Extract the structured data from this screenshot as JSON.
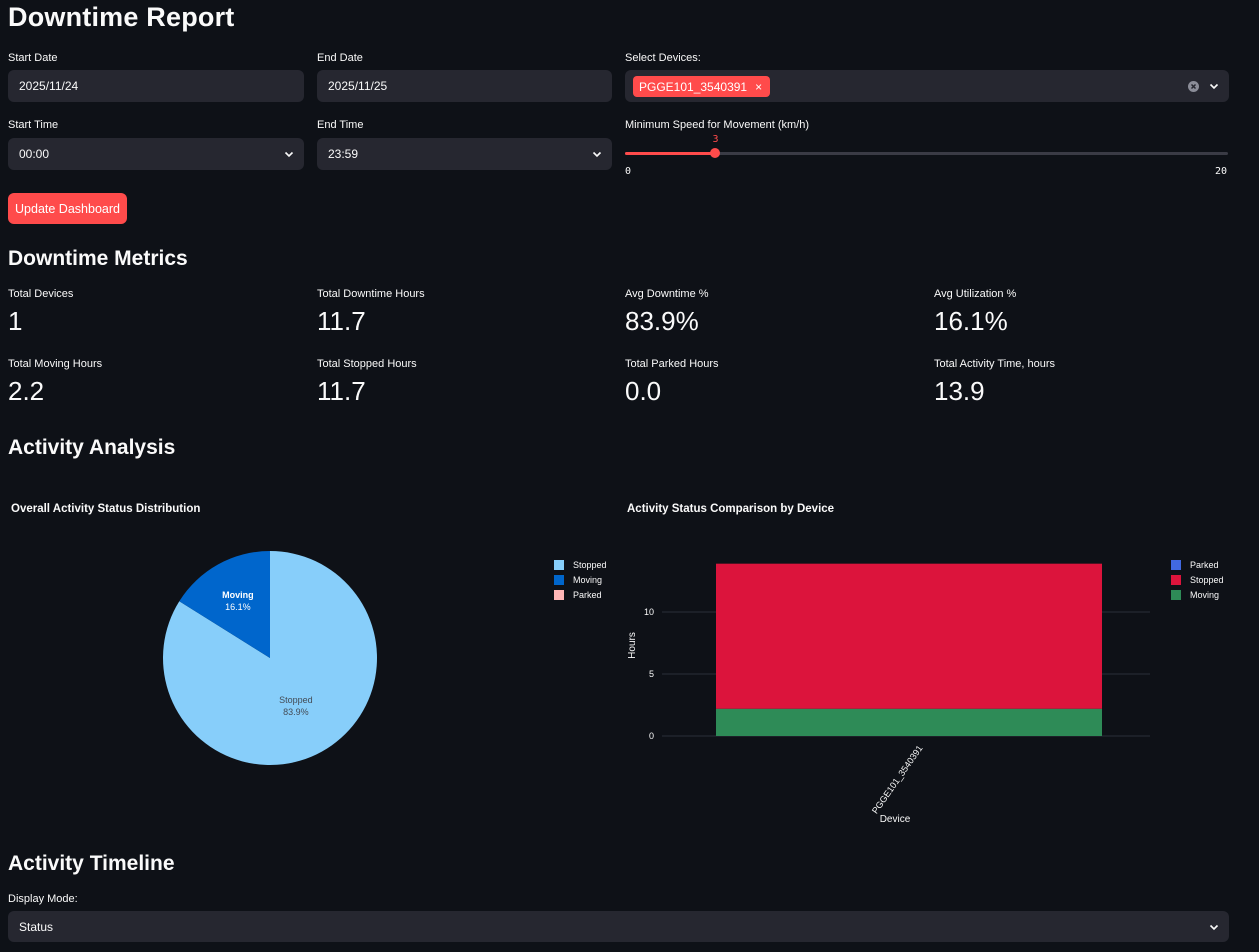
{
  "title": "Downtime Report",
  "filters": {
    "start_date": {
      "label": "Start Date",
      "value": "2025/11/24"
    },
    "end_date": {
      "label": "End Date",
      "value": "2025/11/25"
    },
    "devices": {
      "label": "Select Devices:",
      "selected": "PGGE101_3540391"
    },
    "start_time": {
      "label": "Start Time",
      "value": "00:00"
    },
    "end_time": {
      "label": "End Time",
      "value": "23:59"
    },
    "min_speed": {
      "label": "Minimum Speed for Movement (km/h)",
      "value": 3,
      "min": 0,
      "max": 20,
      "value_label": "3",
      "min_label": "0",
      "max_label": "20"
    },
    "update_button": "Update Dashboard"
  },
  "metrics_heading": "Downtime Metrics",
  "metrics": [
    {
      "label": "Total Devices",
      "value": "1"
    },
    {
      "label": "Total Downtime Hours",
      "value": "11.7"
    },
    {
      "label": "Avg Downtime %",
      "value": "83.9%"
    },
    {
      "label": "Avg Utilization %",
      "value": "16.1%"
    },
    {
      "label": "Total Moving Hours",
      "value": "2.2"
    },
    {
      "label": "Total Stopped Hours",
      "value": "11.7"
    },
    {
      "label": "Total Parked Hours",
      "value": "0.0"
    },
    {
      "label": "Total Activity Time, hours",
      "value": "13.9"
    }
  ],
  "analysis_heading": "Activity Analysis",
  "timeline_heading": "Activity Timeline",
  "display_mode": {
    "label": "Display Mode:",
    "value": "Status"
  },
  "colors": {
    "accent": "#ff4b4b",
    "stopped_pie": "#87cefa",
    "moving_pie": "#0066cc",
    "parked_pie": "#ffb6b6",
    "parked_bar": "#4169e1",
    "stopped_bar": "#dc143c",
    "moving_bar": "#2e8b57"
  },
  "chart_data": [
    {
      "type": "pie",
      "title": "Overall Activity Status Distribution",
      "labels": [
        "Stopped",
        "Moving"
      ],
      "values": [
        83.9,
        16.1
      ],
      "slice_labels": [
        {
          "name": "Stopped",
          "pct": "83.9%"
        },
        {
          "name": "Moving",
          "pct": "16.1%"
        }
      ],
      "legend": [
        "Stopped",
        "Moving",
        "Parked"
      ],
      "legend_position": "right"
    },
    {
      "type": "bar",
      "stacked": true,
      "title": "Activity Status Comparison by Device",
      "categories": [
        "PGGE101_3540391"
      ],
      "series": [
        {
          "name": "Moving",
          "values": [
            2.2
          ]
        },
        {
          "name": "Stopped",
          "values": [
            11.7
          ]
        },
        {
          "name": "Parked",
          "values": [
            0.0
          ]
        }
      ],
      "legend": [
        "Parked",
        "Stopped",
        "Moving"
      ],
      "legend_position": "right",
      "xlabel": "Device",
      "ylabel": "Hours",
      "ylim": [
        0,
        14.6
      ],
      "yticks": [
        0,
        5,
        10
      ],
      "ytick_labels": [
        "0",
        "5",
        "10"
      ],
      "grid": true
    }
  ]
}
